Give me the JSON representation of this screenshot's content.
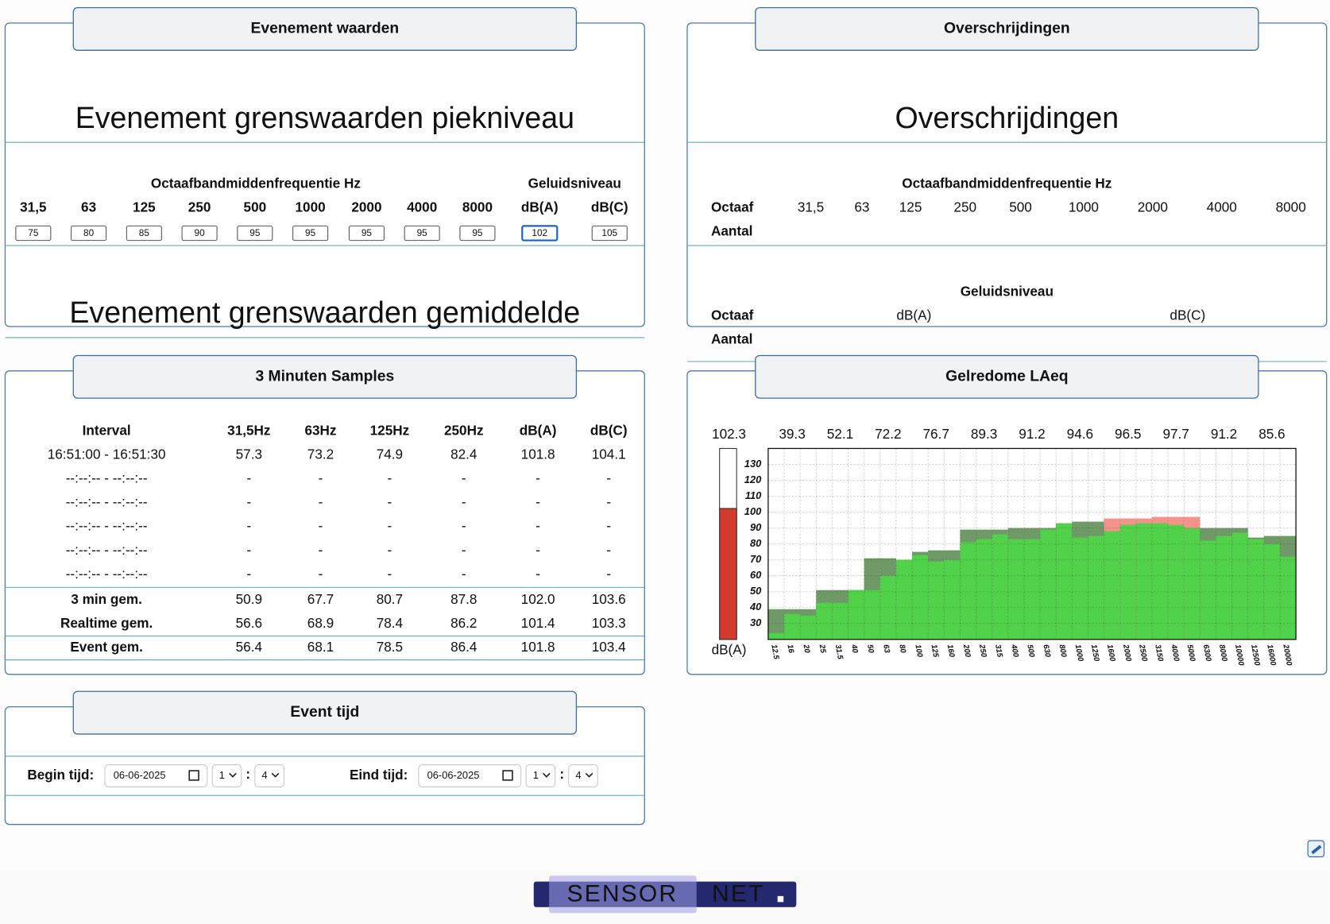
{
  "panels": {
    "event_values": {
      "title": "Evenement waarden",
      "heading_peak": "Evenement grenswaarden piekniveau",
      "group_freq": "Octaafbandmiddenfrequentie Hz",
      "group_level": "Geluidsniveau",
      "columns": [
        "31,5",
        "63",
        "125",
        "250",
        "500",
        "1000",
        "2000",
        "4000",
        "8000",
        "dB(A)",
        "dB(C)"
      ],
      "inputs": [
        "75",
        "80",
        "85",
        "90",
        "95",
        "95",
        "95",
        "95",
        "95",
        "102",
        "105"
      ],
      "heading_avg": "Evenement grenswaarden gemiddelde"
    },
    "exceedances": {
      "title": "Overschrijdingen",
      "heading": "Overschrijdingen",
      "group_freq": "Octaafbandmiddenfrequentie Hz",
      "row_octave": "Octaaf",
      "columns": [
        "31,5",
        "63",
        "125",
        "250",
        "500",
        "1000",
        "2000",
        "4000",
        "8000"
      ],
      "row_count": "Aantal",
      "group_level": "Geluidsniveau",
      "row_octave_level": "Octaaf",
      "level_columns": [
        "dB(A)",
        "dB(C)"
      ],
      "row_count_level": "Aantal"
    },
    "samples": {
      "title": "3 Minuten Samples",
      "header": [
        "Interval",
        "31,5Hz",
        "63Hz",
        "125Hz",
        "250Hz",
        "dB(A)",
        "dB(C)"
      ],
      "rows": [
        [
          "16:51:00 - 16:51:30",
          "57.3",
          "73.2",
          "74.9",
          "82.4",
          "101.8",
          "104.1"
        ],
        [
          "--:--:-- - --:--:--",
          "-",
          "-",
          "-",
          "-",
          "-",
          "-"
        ],
        [
          "--:--:-- - --:--:--",
          "-",
          "-",
          "-",
          "-",
          "-",
          "-"
        ],
        [
          "--:--:-- - --:--:--",
          "-",
          "-",
          "-",
          "-",
          "-",
          "-"
        ],
        [
          "--:--:-- - --:--:--",
          "-",
          "-",
          "-",
          "-",
          "-",
          "-"
        ],
        [
          "--:--:-- - --:--:--",
          "-",
          "-",
          "-",
          "-",
          "-",
          "-"
        ]
      ],
      "summary": [
        [
          "3 min gem.",
          "50.9",
          "67.7",
          "80.7",
          "87.8",
          "102.0",
          "103.6"
        ],
        [
          "Realtime gem.",
          "56.6",
          "68.9",
          "78.4",
          "86.2",
          "101.4",
          "103.3"
        ],
        [
          "Event gem.",
          "56.4",
          "68.1",
          "78.5",
          "86.4",
          "101.8",
          "103.4"
        ]
      ]
    },
    "event_time": {
      "title": "Event tijd",
      "begin_label": "Begin tijd:",
      "begin_date": "06-06-2025",
      "begin_hour": "1",
      "begin_minute": "4",
      "end_label": "Eind tijd:",
      "end_date": "06-06-2025",
      "end_hour": "1",
      "end_minute": "4"
    }
  },
  "chart_data": {
    "type": "bar",
    "title": "Gelredome LAeq",
    "y_label": "dB(A)",
    "meter_value": 102.3,
    "meter_color": "#d13a2c",
    "group_values": [
      39.3,
      52.1,
      72.2,
      76.7,
      89.3,
      91.2,
      94.6,
      96.5,
      97.7,
      91.2,
      85.6
    ],
    "categories": [
      "12.5",
      "16",
      "20",
      "25",
      "31.5",
      "40",
      "50",
      "63",
      "80",
      "100",
      "125",
      "160",
      "200",
      "250",
      "315",
      "400",
      "500",
      "630",
      "800",
      "1000",
      "1250",
      "1600",
      "2000",
      "2500",
      "3150",
      "4000",
      "5000",
      "6300",
      "8000",
      "10000",
      "12500",
      "16000",
      "20000"
    ],
    "values": [
      24,
      36,
      35,
      43,
      43,
      51,
      51,
      60,
      70,
      73,
      69,
      70,
      81,
      83,
      86,
      83,
      83,
      89,
      93,
      84,
      85,
      88,
      92,
      93,
      93,
      92,
      90,
      82,
      85,
      87,
      83,
      80,
      72
    ],
    "color": "#52d24a",
    "max_values": [
      39,
      39,
      39,
      51,
      51,
      51,
      71,
      71,
      70,
      75,
      76,
      76,
      89,
      89,
      89,
      90,
      90,
      90,
      93,
      94,
      94,
      96,
      96,
      96,
      97,
      97,
      97,
      90,
      90,
      90,
      84,
      85,
      85
    ],
    "max_colors": [
      "#6f9a68",
      "#6f9a68",
      "#6f9a68",
      "#6f9a68",
      "#6f9a68",
      "#6f9a68",
      "#6f9a68",
      "#6f9a68",
      "#6f9a68",
      "#6f9a68",
      "#6f9a68",
      "#6f9a68",
      "#6f9a68",
      "#6f9a68",
      "#6f9a68",
      "#6f9a68",
      "#6f9a68",
      "#6f9a68",
      "#6f9a68",
      "#6f9a68",
      "#6f9a68",
      "#f3938b",
      "#f3938b",
      "#f3938b",
      "#f3938b",
      "#f3938b",
      "#f3938b",
      "#6f9a68",
      "#6f9a68",
      "#6f9a68",
      "#6f9a68",
      "#6f9a68",
      "#6f9a68"
    ],
    "ylim": [
      20,
      140
    ],
    "yticks": [
      30,
      40,
      50,
      60,
      70,
      80,
      90,
      100,
      110,
      120,
      130
    ],
    "grid": true
  },
  "footer": {
    "logo_left": "SENSOR",
    "logo_right": "NET"
  }
}
